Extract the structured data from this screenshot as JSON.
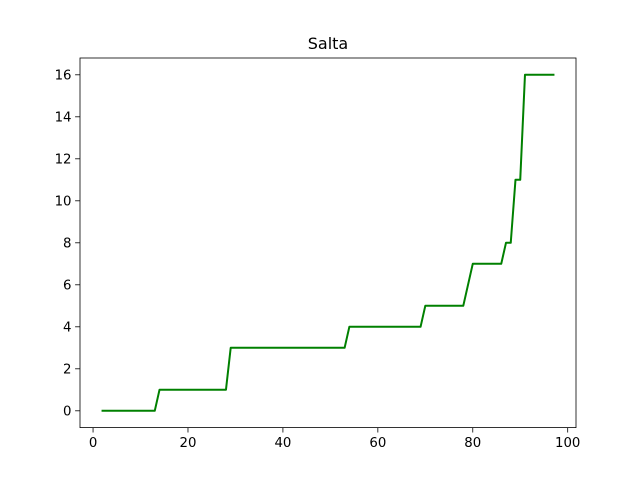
{
  "chart_data": {
    "type": "line",
    "title": "Salta",
    "xlabel": "",
    "ylabel": "",
    "xlim": [
      -2.75,
      101.75
    ],
    "ylim": [
      -0.8,
      16.8
    ],
    "xticks": [
      0,
      20,
      40,
      60,
      80,
      100
    ],
    "yticks": [
      0,
      2,
      4,
      6,
      8,
      10,
      12,
      14,
      16
    ],
    "grid": false,
    "legend": "none",
    "series": [
      {
        "color": "#008000",
        "x": [
          2,
          13,
          14,
          28,
          29,
          53,
          54,
          69,
          70,
          78,
          80,
          86,
          87,
          88,
          89,
          90,
          91,
          97
        ],
        "y": [
          0,
          0,
          1,
          1,
          3,
          3,
          4,
          4,
          5,
          5,
          7,
          7,
          8,
          8,
          11,
          11,
          16,
          16
        ]
      }
    ]
  }
}
